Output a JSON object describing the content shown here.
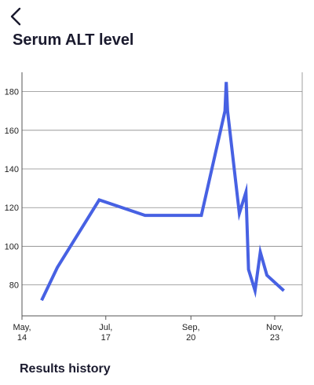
{
  "header": {
    "back_icon": "chevron-left-icon",
    "title": "Serum ALT level"
  },
  "chart_data": {
    "type": "line",
    "title": "Serum ALT level",
    "xlabel": "",
    "ylabel": "",
    "x_ticks": [
      {
        "date": "2000-05-14",
        "line1": "May,",
        "line2": "14"
      },
      {
        "date": "2000-07-17",
        "line1": "Jul,",
        "line2": "17"
      },
      {
        "date": "2000-09-20",
        "line1": "Sep,",
        "line2": "20"
      },
      {
        "date": "2000-11-23",
        "line1": "Nov,",
        "line2": "23"
      }
    ],
    "y_ticks": [
      80,
      100,
      120,
      140,
      160,
      180
    ],
    "xlim": [
      "2000-05-14",
      "2000-12-14"
    ],
    "ylim": [
      64,
      190
    ],
    "grid": {
      "horizontal": true,
      "vertical": false
    },
    "line_color": "#4761e3",
    "series": [
      {
        "name": "",
        "points": [
          {
            "x": "2000-05-29",
            "y": 72
          },
          {
            "x": "2000-06-10",
            "y": 89
          },
          {
            "x": "2000-07-12",
            "y": 124
          },
          {
            "x": "2000-08-16",
            "y": 116
          },
          {
            "x": "2000-09-28",
            "y": 116
          },
          {
            "x": "2000-10-16",
            "y": 170
          },
          {
            "x": "2000-10-17",
            "y": 185
          },
          {
            "x": "2000-10-18",
            "y": 170
          },
          {
            "x": "2000-10-27",
            "y": 117
          },
          {
            "x": "2000-11-01",
            "y": 128
          },
          {
            "x": "2000-11-03",
            "y": 88
          },
          {
            "x": "2000-11-08",
            "y": 77
          },
          {
            "x": "2000-11-12",
            "y": 97
          },
          {
            "x": "2000-11-17",
            "y": 85
          },
          {
            "x": "2000-11-30",
            "y": 77
          }
        ]
      }
    ]
  },
  "results": {
    "title": "Results history"
  }
}
